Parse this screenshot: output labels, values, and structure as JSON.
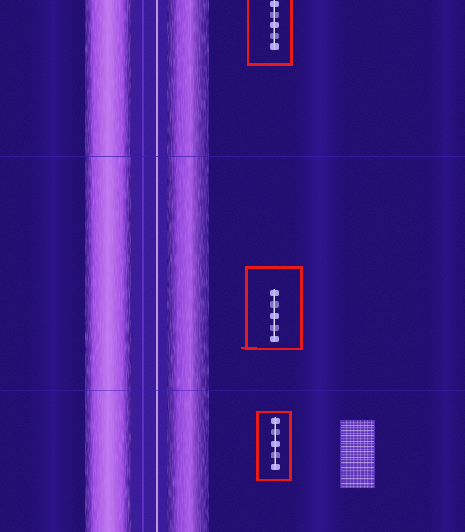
{
  "waterfall": {
    "background_color": "#1d0a6e",
    "band_color": "#9a49e0",
    "band_highlight": "#e3a2f0",
    "marker_color": "#ea1a1a",
    "signal_color": "#c8c0ff"
  },
  "detections": {
    "count": 3
  }
}
